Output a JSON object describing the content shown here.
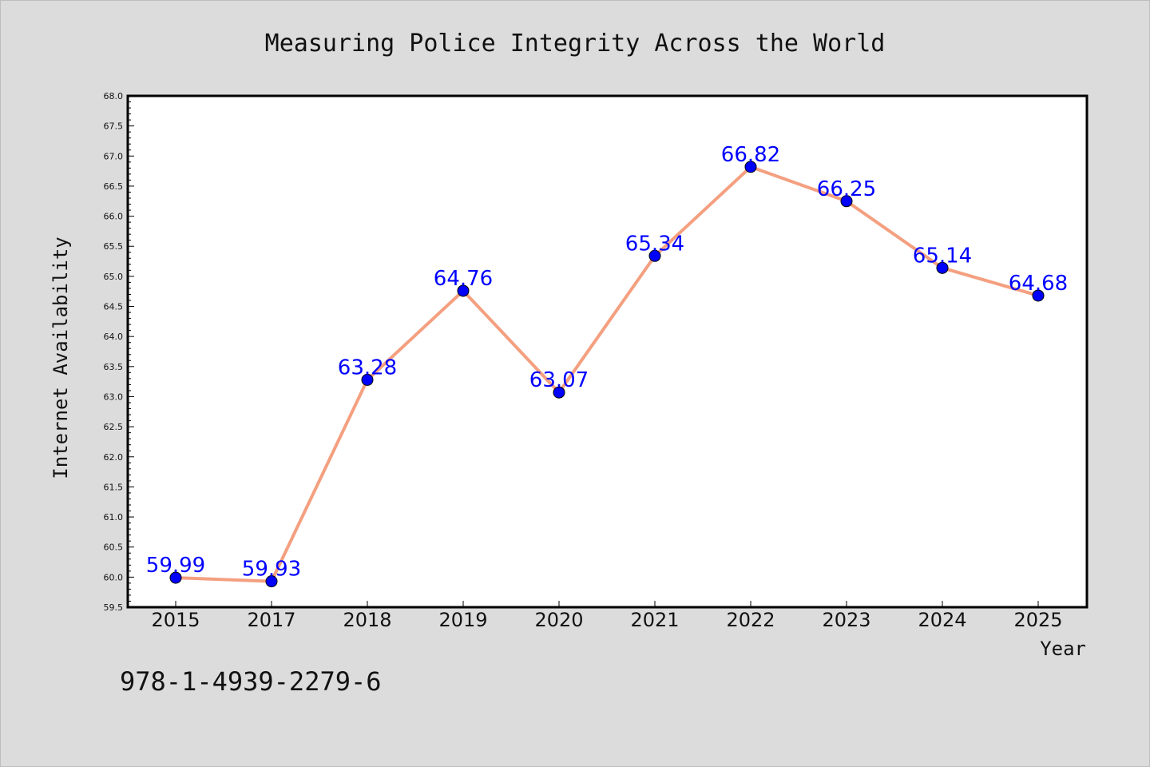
{
  "chart_data": {
    "type": "line",
    "title": "Measuring Police Integrity Across the World",
    "xlabel": "Year",
    "ylabel": "Internet Availability",
    "categories": [
      "2015",
      "2017",
      "2018",
      "2019",
      "2020",
      "2021",
      "2022",
      "2023",
      "2024",
      "2025"
    ],
    "series": [
      {
        "values": [
          59.99,
          59.93,
          63.28,
          64.76,
          63.07,
          65.34,
          66.82,
          66.25,
          65.14,
          64.68
        ],
        "labels": [
          "59.99",
          "59.93",
          "63.28",
          "64.76",
          "63.07",
          "65.34",
          "66.82",
          "66.25",
          "65.14",
          "64.68"
        ]
      }
    ],
    "ylim": [
      59.5,
      68.0
    ],
    "yticks": [
      "59.5",
      "60.0",
      "60.5",
      "61.0",
      "61.5",
      "62.0",
      "62.5",
      "63.0",
      "63.5",
      "64.0",
      "64.5",
      "65.0",
      "65.5",
      "66.0",
      "66.5",
      "67.0",
      "67.5",
      "68.0"
    ],
    "grid": false,
    "line_color": "#f4a080",
    "marker_color": "#0000ff",
    "label_color": "#0000ff",
    "background": "#dcdcdc",
    "plot_background": "#ffffff"
  },
  "footer": {
    "isbn": "978-1-4939-2279-6"
  }
}
